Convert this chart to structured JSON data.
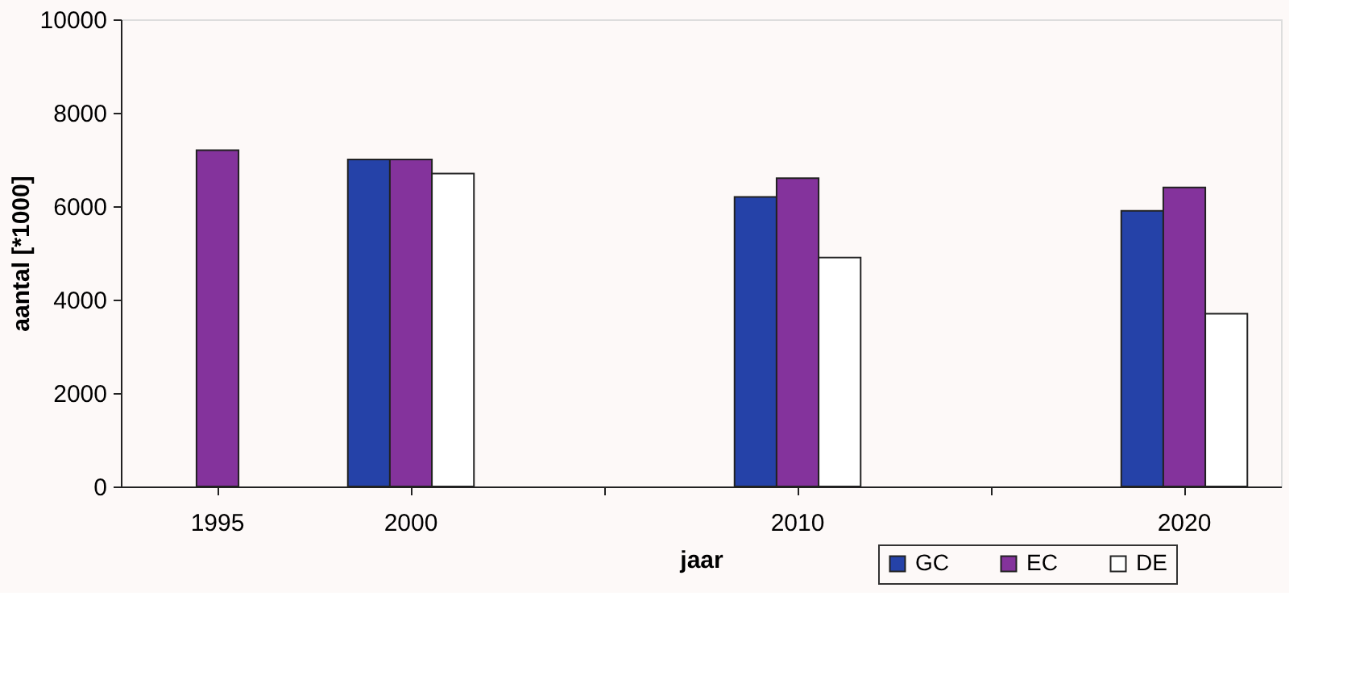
{
  "chart_data": {
    "type": "bar",
    "xlabel": "jaar",
    "ylabel": "aantal [*1000]",
    "categories": [
      "1995",
      "2000",
      null,
      "2010",
      null,
      "2020"
    ],
    "series": [
      {
        "name": "GC",
        "color": "#2542a8",
        "values": [
          null,
          7000,
          null,
          6200,
          null,
          5900
        ]
      },
      {
        "name": "EC",
        "color": "#84339c",
        "values": [
          7200,
          7000,
          null,
          6600,
          null,
          6400
        ]
      },
      {
        "name": "DE",
        "color": "#ffffff",
        "values": [
          null,
          6700,
          null,
          4900,
          null,
          3700
        ]
      }
    ],
    "ylim": [
      0,
      10000
    ],
    "yticks": [
      0,
      2000,
      4000,
      6000,
      8000,
      10000
    ],
    "grid": false,
    "legend": "bottom right"
  }
}
